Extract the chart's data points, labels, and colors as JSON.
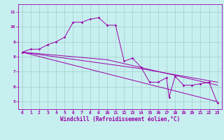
{
  "title": "",
  "xlabel": "Windchill (Refroidissement éolien,°C)",
  "xlim": [
    -0.5,
    23.5
  ],
  "ylim": [
    4.5,
    11.5
  ],
  "yticks": [
    5,
    6,
    7,
    8,
    9,
    10,
    11
  ],
  "xticks": [
    0,
    1,
    2,
    3,
    4,
    5,
    6,
    7,
    8,
    9,
    10,
    11,
    12,
    13,
    14,
    15,
    16,
    17,
    18,
    19,
    20,
    21,
    22,
    23
  ],
  "background_color": "#c8efef",
  "grid_color": "#9ecece",
  "line_color": "#9900aa",
  "series": [
    [
      0,
      8.3
    ],
    [
      1,
      8.5
    ],
    [
      2,
      8.5
    ],
    [
      3,
      8.8
    ],
    [
      4,
      9.0
    ],
    [
      5,
      9.3
    ],
    [
      6,
      10.3
    ],
    [
      7,
      10.3
    ],
    [
      8,
      10.5
    ],
    [
      9,
      10.6
    ],
    [
      10,
      10.1
    ],
    [
      11,
      10.1
    ],
    [
      12,
      7.7
    ],
    [
      13,
      7.9
    ],
    [
      14,
      7.3
    ],
    [
      15,
      6.3
    ],
    [
      16,
      6.3
    ],
    [
      17,
      6.6
    ],
    [
      17.3,
      5.3
    ],
    [
      18,
      6.7
    ],
    [
      19,
      6.1
    ],
    [
      20,
      6.1
    ],
    [
      21,
      6.2
    ],
    [
      22,
      6.3
    ],
    [
      23,
      4.9
    ]
  ],
  "line2": [
    [
      0,
      8.3
    ],
    [
      23,
      5.0
    ]
  ],
  "line3": [
    [
      0,
      8.3
    ],
    [
      14,
      7.2
    ],
    [
      23,
      6.3
    ]
  ],
  "line4": [
    [
      0,
      8.3
    ],
    [
      10,
      7.8
    ],
    [
      23,
      6.1
    ]
  ],
  "tick_fontsize": 4.5,
  "xlabel_fontsize": 5.5
}
